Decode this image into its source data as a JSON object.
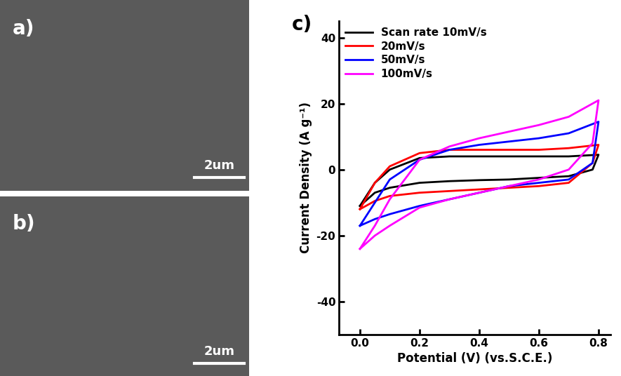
{
  "panels": [
    {
      "label": "a)",
      "scale_bar": "2um"
    },
    {
      "label": "b)",
      "scale_bar": "2um"
    }
  ],
  "chart_data": {
    "type": "line",
    "label": "c)",
    "x_label": "Potential (V) (vs.S.C.E.)",
    "y_label": "Current Density (A g⁻¹)",
    "x": [
      0.0,
      0.05,
      0.1,
      0.2,
      0.3,
      0.4,
      0.5,
      0.6,
      0.7,
      0.8,
      0.78,
      0.7,
      0.6,
      0.5,
      0.4,
      0.3,
      0.2,
      0.1,
      0.05,
      0.0
    ],
    "series": [
      {
        "name": "Scan rate 10mV/s",
        "color": "#000000",
        "values": [
          -11,
          -4,
          0,
          3.5,
          4,
          4,
          4,
          4,
          4,
          4.5,
          0,
          -2,
          -2.5,
          -3,
          -3.2,
          -3.5,
          -4,
          -5.5,
          -7,
          -11
        ]
      },
      {
        "name": "20mV/s",
        "color": "#ff0000",
        "values": [
          -12,
          -4,
          1,
          5,
          6,
          6,
          6,
          6,
          6.5,
          7.5,
          2,
          -4,
          -5,
          -5.5,
          -6,
          -6.5,
          -7,
          -8,
          -9.5,
          -12
        ]
      },
      {
        "name": "50mV/s",
        "color": "#0000ff",
        "values": [
          -17,
          -10,
          -3,
          3,
          6,
          7.5,
          8.5,
          9.5,
          11,
          14.5,
          2,
          -3,
          -4,
          -5,
          -7,
          -9,
          -11,
          -13.5,
          -15,
          -17
        ]
      },
      {
        "name": "100mV/s",
        "color": "#ff00ff",
        "values": [
          -24,
          -17,
          -9,
          3,
          7,
          9.5,
          11.5,
          13.5,
          16,
          21,
          8,
          0,
          -3,
          -5,
          -7,
          -9,
          -11.5,
          -17,
          -20,
          -24
        ]
      }
    ],
    "xlim": [
      -0.07,
      0.84
    ],
    "ylim": [
      -50,
      45
    ],
    "xticks": [
      0.0,
      0.2,
      0.4,
      0.6,
      0.8
    ],
    "yticks": [
      -40,
      -20,
      0,
      20,
      40
    ],
    "legend": "upper left"
  }
}
